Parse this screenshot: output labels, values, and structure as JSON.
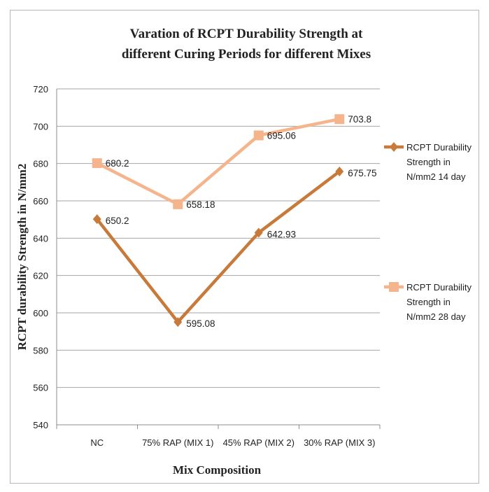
{
  "chart_data": {
    "type": "line",
    "title_lines": [
      "Varation of RCPT Durability Strength at",
      "different Curing Periods for different Mixes"
    ],
    "xlabel": "Mix Composition",
    "ylabel": "RCPT durability Strength in N/mm2",
    "categories": [
      "NC",
      "75% RAP (MIX 1)",
      "45% RAP (MIX 2)",
      "30% RAP (MIX 3)"
    ],
    "ylim": [
      540,
      720
    ],
    "yticks": [
      540,
      560,
      580,
      600,
      620,
      640,
      660,
      680,
      700,
      720
    ],
    "grid": true,
    "legend_position": "right",
    "series": [
      {
        "name": "RCPT Durability Strength in N/mm2 14 day",
        "legend_lines": [
          "RCPT Durability",
          "Strength in",
          "N/mm2 14 day"
        ],
        "values": [
          650.2,
          595.08,
          642.93,
          675.75
        ],
        "labels": [
          "650.2",
          "595.08",
          "642.93",
          "675.75"
        ],
        "marker": "diamond",
        "color": "#c87a3a"
      },
      {
        "name": "RCPT Durability Strength in N/mm2 28 day",
        "legend_lines": [
          "RCPT Durability",
          "Strength in",
          "N/mm2 28 day"
        ],
        "values": [
          680.2,
          658.18,
          695.06,
          703.8
        ],
        "labels": [
          "680.2",
          "658.18",
          "695.06",
          "703.8"
        ],
        "marker": "square",
        "color": "#f5b48c"
      }
    ]
  }
}
